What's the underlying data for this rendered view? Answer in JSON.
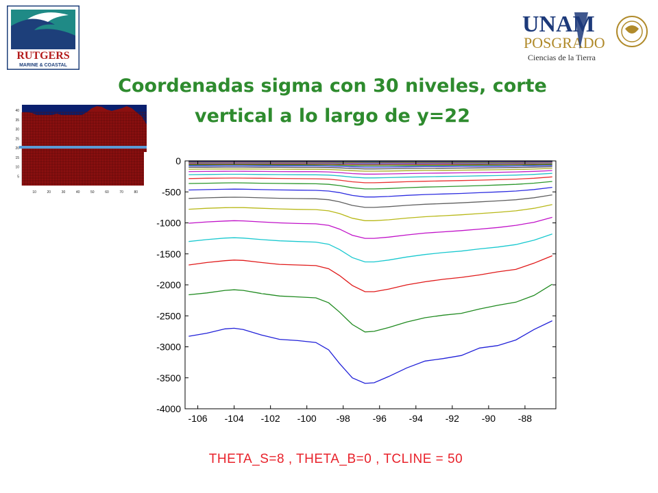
{
  "logos": {
    "left": {
      "text_main": "RUTGERS",
      "text_sub": "MARINE & COASTAL"
    },
    "right": {
      "text_top": "UNAM",
      "text_mid": "POSGRADO",
      "text_bottom": "Ciencias de la Tierra"
    }
  },
  "slide": {
    "title_line1": "Coordenadas sigma con 30 niveles, corte",
    "title_line2": "vertical a lo largo de y=22",
    "params": "THETA_S=8 , THETA_B=0 , TCLINE = 50"
  },
  "colors": {
    "title": "#2e8b2e",
    "params": "#e8212a",
    "inset_fill": "#8b0f0f",
    "inset_top": "#0a1f6e",
    "inset_line": "#5b9bd5"
  },
  "inset_data": {
    "xticks": [
      "10",
      "20",
      "30",
      "40",
      "50",
      "60",
      "70",
      "80"
    ],
    "yticks": [
      "5",
      "10",
      "15",
      "20",
      "25",
      "30",
      "35",
      "40"
    ]
  },
  "chart_data": {
    "type": "line",
    "xlim": [
      -106.7,
      -86.3
    ],
    "ylim": [
      -4000,
      0
    ],
    "xticks": [
      -106,
      -104,
      -102,
      -100,
      -98,
      -96,
      -94,
      -92,
      -90,
      -88
    ],
    "yticks": [
      0,
      -500,
      -1000,
      -1500,
      -2000,
      -2500,
      -3000,
      -3500,
      -4000
    ],
    "x": [
      -106.5,
      -105.5,
      -104.5,
      -104,
      -103.5,
      -102.5,
      -101.5,
      -100.5,
      -99.5,
      -98.8,
      -98.2,
      -97.5,
      -96.8,
      -96.3,
      -95.5,
      -94.5,
      -93.5,
      -92.5,
      -91.5,
      -90.5,
      -89.5,
      -88.5,
      -87.5,
      -86.5
    ],
    "bottom_depth": [
      2830,
      2780,
      2710,
      2700,
      2720,
      2810,
      2880,
      2900,
      2930,
      3050,
      3270,
      3500,
      3590,
      3580,
      3480,
      3340,
      3230,
      3190,
      3140,
      3020,
      2980,
      2890,
      2720,
      2580
    ],
    "series": [
      {
        "color": "#1f1fd8",
        "values": [
          -2830,
          -2780,
          -2710,
          -2700,
          -2720,
          -2810,
          -2880,
          -2900,
          -2930,
          -3050,
          -3270,
          -3500,
          -3590,
          -3580,
          -3480,
          -3340,
          -3230,
          -3190,
          -3140,
          -3020,
          -2980,
          -2890,
          -2720,
          -2580
        ]
      },
      {
        "color": "#1f8a1f",
        "values": [
          -2160,
          -2130,
          -2090,
          -2080,
          -2090,
          -2140,
          -2180,
          -2195,
          -2210,
          -2290,
          -2440,
          -2640,
          -2760,
          -2750,
          -2690,
          -2600,
          -2530,
          -2490,
          -2460,
          -2390,
          -2330,
          -2280,
          -2170,
          -1990
        ]
      },
      {
        "color": "#e01818",
        "values": [
          -1680,
          -1640,
          -1610,
          -1600,
          -1605,
          -1640,
          -1670,
          -1680,
          -1690,
          -1740,
          -1850,
          -2010,
          -2110,
          -2110,
          -2070,
          -2000,
          -1950,
          -1910,
          -1880,
          -1840,
          -1790,
          -1750,
          -1650,
          -1530
        ]
      },
      {
        "color": "#17c8cf",
        "values": [
          -1300,
          -1270,
          -1245,
          -1240,
          -1245,
          -1270,
          -1290,
          -1300,
          -1310,
          -1345,
          -1430,
          -1560,
          -1630,
          -1630,
          -1600,
          -1550,
          -1510,
          -1480,
          -1455,
          -1420,
          -1390,
          -1350,
          -1280,
          -1180
        ]
      },
      {
        "color": "#c010c8",
        "values": [
          -1005,
          -985,
          -970,
          -965,
          -968,
          -985,
          -1000,
          -1010,
          -1015,
          -1040,
          -1100,
          -1200,
          -1250,
          -1250,
          -1230,
          -1195,
          -1165,
          -1145,
          -1125,
          -1100,
          -1075,
          -1040,
          -990,
          -910
        ]
      },
      {
        "color": "#b8b817",
        "values": [
          -780,
          -765,
          -755,
          -752,
          -754,
          -765,
          -775,
          -782,
          -786,
          -806,
          -850,
          -925,
          -965,
          -965,
          -950,
          -923,
          -900,
          -885,
          -870,
          -850,
          -830,
          -805,
          -765,
          -705
        ]
      },
      {
        "color": "#606060",
        "values": [
          -605,
          -596,
          -588,
          -586,
          -587,
          -596,
          -603,
          -608,
          -611,
          -626,
          -660,
          -718,
          -750,
          -750,
          -738,
          -717,
          -700,
          -688,
          -676,
          -661,
          -645,
          -626,
          -595,
          -548
        ]
      },
      {
        "color": "#2c2ce0",
        "values": [
          -470,
          -463,
          -457,
          -455,
          -456,
          -463,
          -468,
          -472,
          -475,
          -486,
          -512,
          -557,
          -582,
          -582,
          -573,
          -556,
          -543,
          -534,
          -525,
          -513,
          -501,
          -486,
          -462,
          -426
        ]
      },
      {
        "color": "#2a962a",
        "values": [
          -365,
          -360,
          -355,
          -354,
          -355,
          -360,
          -364,
          -367,
          -369,
          -378,
          -398,
          -433,
          -452,
          -452,
          -445,
          -432,
          -422,
          -415,
          -408,
          -399,
          -389,
          -378,
          -359,
          -331
        ]
      },
      {
        "color": "#e83030",
        "values": [
          -285,
          -280,
          -277,
          -276,
          -277,
          -280,
          -283,
          -286,
          -288,
          -294,
          -310,
          -337,
          -352,
          -352,
          -346,
          -336,
          -328,
          -323,
          -317,
          -310,
          -303,
          -294,
          -280,
          -258
        ]
      },
      {
        "color": "#20c0c8",
        "values": [
          -222,
          -219,
          -216,
          -215,
          -216,
          -219,
          -221,
          -223,
          -224,
          -229,
          -241,
          -262,
          -274,
          -274,
          -270,
          -262,
          -256,
          -251,
          -247,
          -241,
          -236,
          -229,
          -218,
          -201
        ]
      },
      {
        "color": "#c020c8",
        "values": [
          -172,
          -170,
          -168,
          -167,
          -168,
          -170,
          -172,
          -173,
          -174,
          -178,
          -188,
          -204,
          -213,
          -213,
          -210,
          -204,
          -199,
          -196,
          -192,
          -188,
          -184,
          -178,
          -169,
          -156
        ]
      },
      {
        "color": "#a8a820",
        "values": [
          -134,
          -132,
          -130,
          -130,
          -130,
          -132,
          -134,
          -135,
          -135,
          -138,
          -146,
          -158,
          -166,
          -166,
          -163,
          -158,
          -154,
          -152,
          -149,
          -146,
          -143,
          -138,
          -132,
          -121
        ]
      },
      {
        "color": "#505050",
        "values": [
          -104,
          -103,
          -101,
          -101,
          -101,
          -103,
          -104,
          -105,
          -105,
          -107,
          -113,
          -123,
          -129,
          -129,
          -127,
          -123,
          -120,
          -118,
          -116,
          -113,
          -111,
          -107,
          -102,
          -94
        ]
      },
      {
        "color": "#3030e0",
        "values": [
          -81,
          -80,
          -79,
          -78,
          -79,
          -80,
          -81,
          -81,
          -82,
          -83,
          -88,
          -96,
          -100,
          -100,
          -99,
          -96,
          -93,
          -92,
          -90,
          -88,
          -86,
          -83,
          -80,
          -73
        ]
      },
      {
        "color": "#229022",
        "values": [
          -63,
          -62,
          -61,
          -61,
          -61,
          -62,
          -63,
          -63,
          -64,
          -65,
          -68,
          -75,
          -78,
          -78,
          -77,
          -75,
          -73,
          -72,
          -70,
          -69,
          -67,
          -65,
          -62,
          -57
        ]
      },
      {
        "color": "#e02020",
        "values": [
          -49,
          -48,
          -48,
          -47,
          -47,
          -48,
          -49,
          -49,
          -50,
          -51,
          -53,
          -58,
          -61,
          -61,
          -60,
          -58,
          -57,
          -56,
          -55,
          -53,
          -52,
          -51,
          -48,
          -44
        ]
      },
      {
        "color": "#20c0c8",
        "values": [
          -38,
          -38,
          -37,
          -37,
          -37,
          -38,
          -38,
          -38,
          -39,
          -40,
          -41,
          -45,
          -47,
          -47,
          -46,
          -45,
          -44,
          -43,
          -43,
          -41,
          -41,
          -40,
          -37,
          -34
        ]
      },
      {
        "color": "#c020c8",
        "values": [
          -30,
          -29,
          -29,
          -29,
          -29,
          -29,
          -30,
          -30,
          -30,
          -31,
          -32,
          -35,
          -37,
          -37,
          -36,
          -35,
          -34,
          -34,
          -33,
          -32,
          -32,
          -31,
          -29,
          -27
        ]
      },
      {
        "color": "#b0b020",
        "values": [
          -23,
          -23,
          -22,
          -22,
          -22,
          -23,
          -23,
          -23,
          -23,
          -24,
          -25,
          -27,
          -28,
          -28,
          -28,
          -27,
          -27,
          -26,
          -26,
          -25,
          -25,
          -24,
          -23,
          -21
        ]
      },
      {
        "color": "#404040",
        "values": [
          -18,
          -18,
          -17,
          -17,
          -17,
          -18,
          -18,
          -18,
          -18,
          -19,
          -20,
          -21,
          -22,
          -22,
          -22,
          -21,
          -21,
          -20,
          -20,
          -20,
          -19,
          -19,
          -18,
          -16
        ]
      },
      {
        "color": "#3030e0",
        "values": [
          -14,
          -14,
          -13,
          -13,
          -13,
          -14,
          -14,
          -14,
          -14,
          -14,
          -15,
          -16,
          -17,
          -17,
          -17,
          -16,
          -16,
          -16,
          -15,
          -15,
          -15,
          -14,
          -14,
          -13
        ]
      },
      {
        "color": "#229022",
        "values": [
          -11,
          -10,
          -10,
          -10,
          -10,
          -10,
          -11,
          -11,
          -11,
          -11,
          -12,
          -13,
          -13,
          -13,
          -13,
          -13,
          -12,
          -12,
          -12,
          -12,
          -11,
          -11,
          -10,
          -10
        ]
      },
      {
        "color": "#e02020",
        "values": [
          -8,
          -8,
          -8,
          -8,
          -8,
          -8,
          -8,
          -8,
          -8,
          -8,
          -9,
          -10,
          -10,
          -10,
          -10,
          -10,
          -9,
          -9,
          -9,
          -9,
          -9,
          -8,
          -8,
          -7
        ]
      },
      {
        "color": "#20c0c8",
        "values": [
          -6,
          -6,
          -6,
          -6,
          -6,
          -6,
          -6,
          -6,
          -6,
          -6,
          -7,
          -7,
          -8,
          -8,
          -7,
          -7,
          -7,
          -7,
          -7,
          -7,
          -7,
          -6,
          -6,
          -6
        ]
      },
      {
        "color": "#c020c8",
        "values": [
          -4,
          -4,
          -4,
          -4,
          -4,
          -4,
          -4,
          -4,
          -4,
          -5,
          -5,
          -5,
          -6,
          -6,
          -5,
          -5,
          -5,
          -5,
          -5,
          -5,
          -5,
          -5,
          -4,
          -4
        ]
      },
      {
        "color": "#a0a020",
        "values": [
          -3,
          -3,
          -3,
          -3,
          -3,
          -3,
          -3,
          -3,
          -3,
          -3,
          -3,
          -4,
          -4,
          -4,
          -4,
          -4,
          -4,
          -3,
          -3,
          -3,
          -3,
          -3,
          -3,
          -3
        ]
      },
      {
        "color": "#303030",
        "values": [
          -2,
          -2,
          -2,
          -2,
          -2,
          -2,
          -2,
          -2,
          -2,
          -2,
          -2,
          -2,
          -3,
          -3,
          -3,
          -2,
          -2,
          -2,
          -2,
          -2,
          -2,
          -2,
          -2,
          -2
        ]
      },
      {
        "color": "#2020e0",
        "values": [
          -1,
          -1,
          -1,
          -1,
          -1,
          -1,
          -1,
          -1,
          -1,
          -1,
          -1,
          -1,
          -1,
          -1,
          -1,
          -1,
          -1,
          -1,
          -1,
          -1,
          -1,
          -1,
          -1,
          -1
        ]
      },
      {
        "color": "#000000",
        "values": [
          0,
          0,
          0,
          0,
          0,
          0,
          0,
          0,
          0,
          0,
          0,
          0,
          0,
          0,
          0,
          0,
          0,
          0,
          0,
          0,
          0,
          0,
          0,
          0
        ]
      }
    ]
  }
}
